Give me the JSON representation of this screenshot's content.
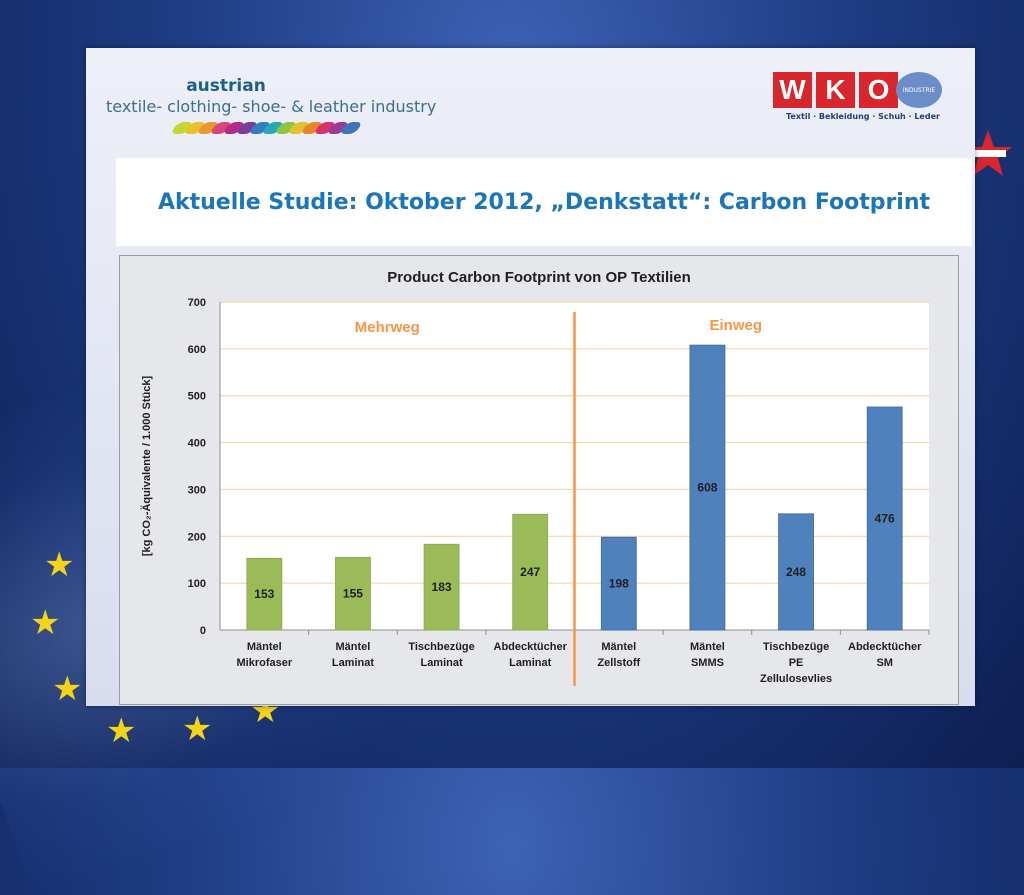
{
  "header": {
    "brand_top": "austrian",
    "brand_line": "textile- clothing- shoe- & leather industry",
    "wko_letters": [
      "W",
      "K",
      "O"
    ],
    "wko_badge": "INDUSTRIE",
    "wko_sub": "Textil · Bekleidung · Schuh · Leder"
  },
  "slide": {
    "title": "Aktuelle Studie: Oktober 2012, „Denkstatt“: Carbon Footprint"
  },
  "colors": {
    "green_bar": "#9bbb59",
    "blue_bar": "#4f81bd",
    "divider": "#f79646",
    "title_blue": "#1a76b8"
  },
  "chart_data": {
    "type": "bar",
    "title": "Product Carbon Footprint von OP Textilien",
    "ylabel": "[kg CO₂-Äquivalente / 1.000 Stück]",
    "ylim": [
      0,
      700
    ],
    "yticks": [
      0,
      100,
      200,
      300,
      400,
      500,
      600,
      700
    ],
    "grid": true,
    "categories": [
      [
        "Mäntel",
        "Mikrofaser"
      ],
      [
        "Mäntel",
        "Laminat"
      ],
      [
        "Tischbezüge",
        "Laminat"
      ],
      [
        "Abdecktücher",
        "Laminat"
      ],
      [
        "Mäntel",
        "Zellstoff"
      ],
      [
        "Mäntel",
        "SMMS"
      ],
      [
        "Tischbezüge",
        "PE",
        "Zellulosevlies"
      ],
      [
        "Abdecktücher",
        "SM"
      ]
    ],
    "values": [
      153,
      155,
      183,
      247,
      198,
      608,
      248,
      476
    ],
    "groups": [
      "Mehrweg",
      "Mehrweg",
      "Mehrweg",
      "Mehrweg",
      "Einweg",
      "Einweg",
      "Einweg",
      "Einweg"
    ],
    "annotations": [
      "Mehrweg",
      "Einweg"
    ]
  }
}
